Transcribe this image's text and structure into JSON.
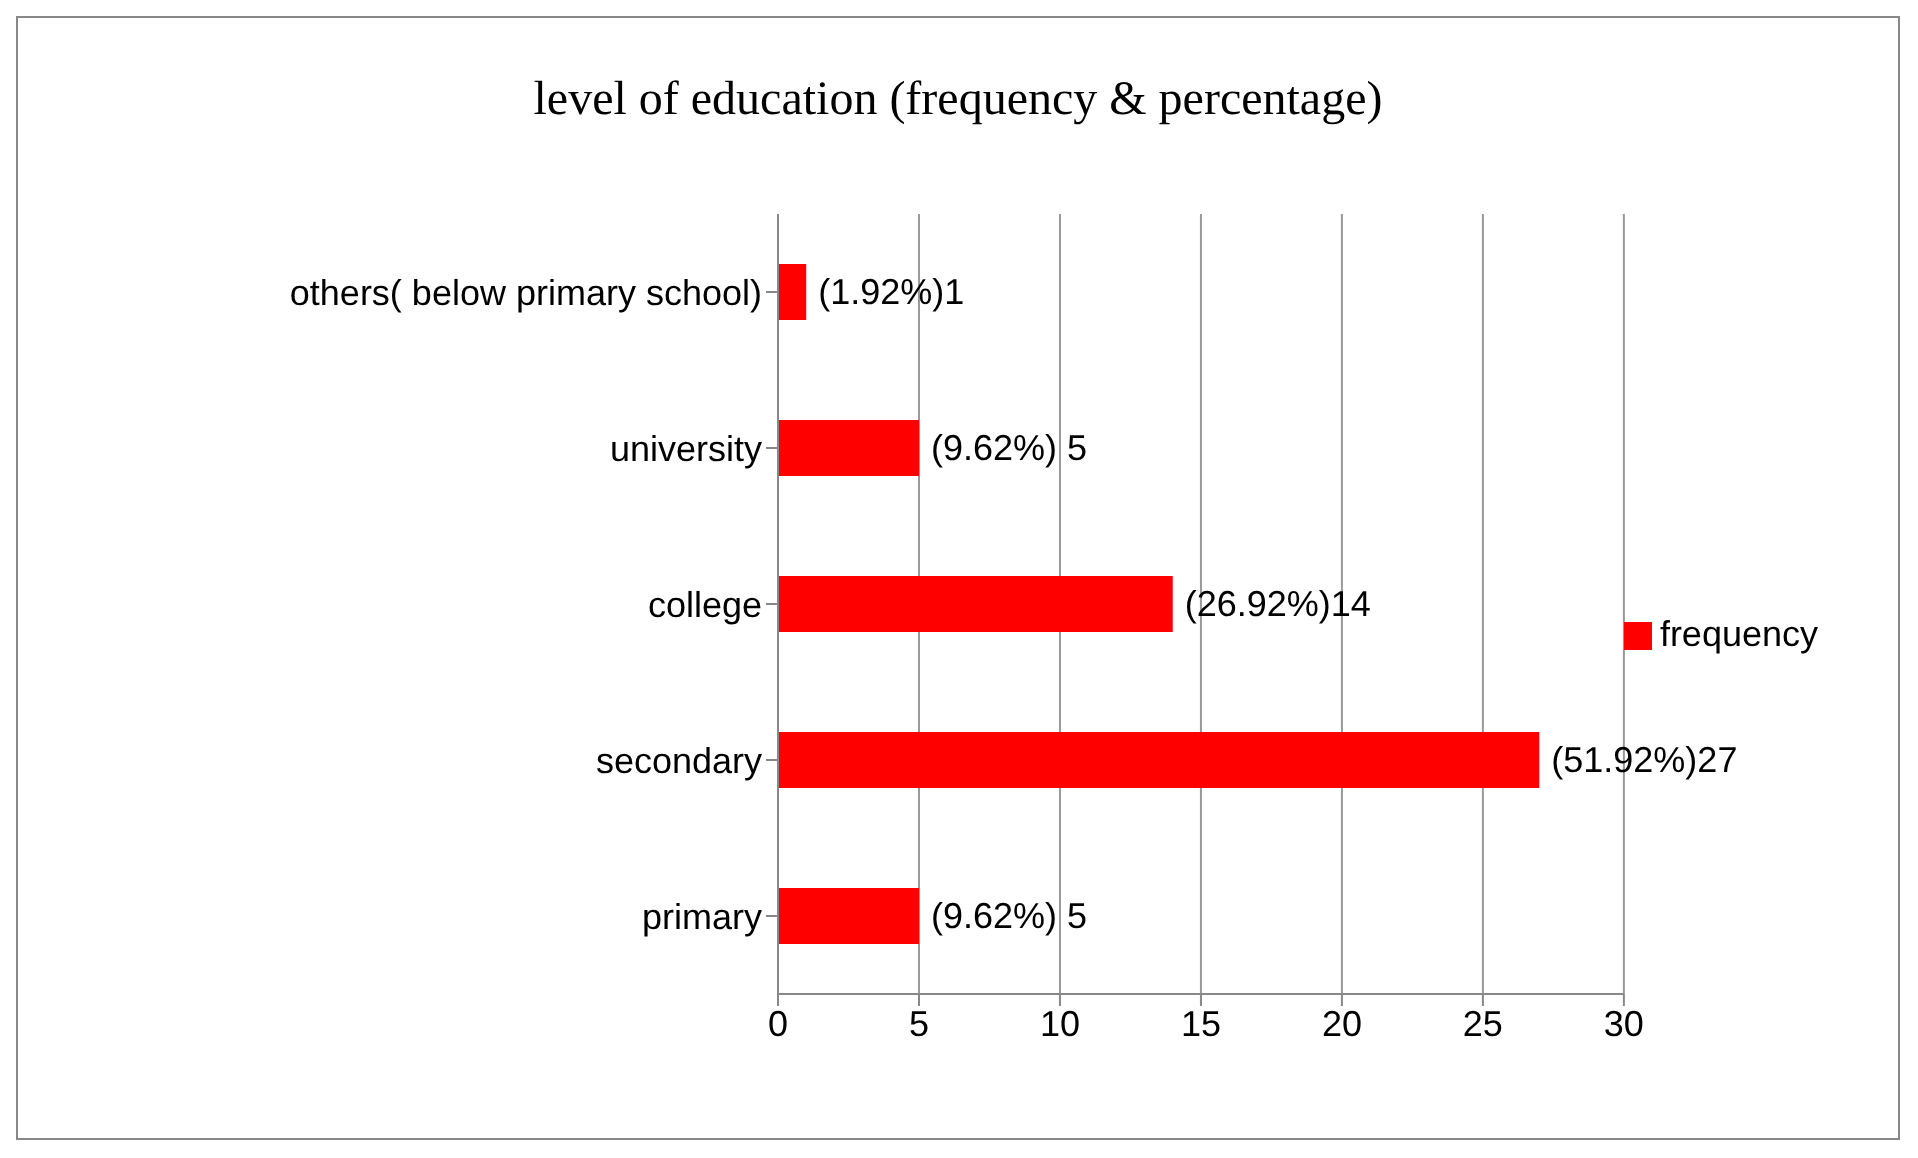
{
  "chart_data": {
    "type": "bar",
    "orientation": "horizontal",
    "title": "level of education (frequency & percentage)",
    "categories": [
      "others( below primary school)",
      "university",
      "college",
      "secondary",
      "primary"
    ],
    "series": [
      {
        "name": "frequency",
        "color": "#ff0000",
        "values": [
          1,
          5,
          14,
          27,
          5
        ],
        "value_labels": [
          "(1.92%)1",
          "(9.62%) 5",
          "(26.92%)14",
          "(51.92%)27",
          "(9.62%) 5"
        ]
      }
    ],
    "xlim": [
      0,
      30
    ],
    "xticks": [
      0,
      5,
      10,
      15,
      20,
      25,
      30
    ],
    "grid": "x",
    "legend": "right"
  }
}
